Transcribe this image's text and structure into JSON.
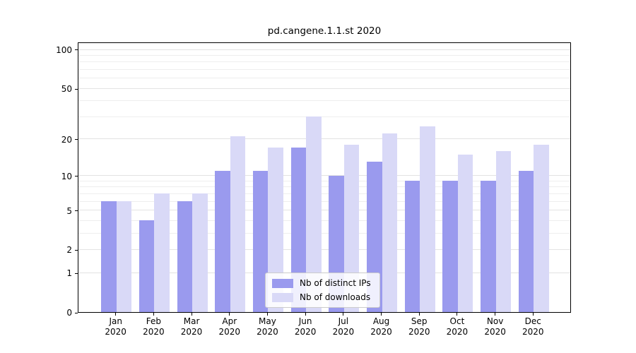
{
  "chart_data": {
    "type": "bar",
    "title": "pd.cangene.1.1.st 2020",
    "categories": [
      "Jan",
      "Feb",
      "Mar",
      "Apr",
      "May",
      "Jun",
      "Jul",
      "Aug",
      "Sep",
      "Oct",
      "Nov",
      "Dec"
    ],
    "year": "2020",
    "series": [
      {
        "name": "Nb of distinct IPs",
        "color": "#9a9aee",
        "values": [
          6,
          4,
          6,
          11,
          11,
          17,
          10,
          13,
          9,
          9,
          9,
          11
        ]
      },
      {
        "name": "Nb of downloads",
        "color": "#d9d9f7",
        "values": [
          6,
          7,
          7,
          21,
          17,
          30,
          18,
          22,
          25,
          15,
          16,
          18
        ]
      }
    ],
    "y_axis": {
      "scale": "log1p",
      "major_ticks": [
        0,
        1,
        2,
        5,
        10,
        20,
        50,
        100
      ],
      "minor_gridlines": [
        3,
        4,
        6,
        7,
        8,
        9,
        30,
        40,
        60,
        70,
        80,
        90
      ],
      "max": 115
    },
    "xlabel": "",
    "ylabel": "",
    "grid": "horizontal",
    "legend_position": "inside-bottom-center"
  }
}
